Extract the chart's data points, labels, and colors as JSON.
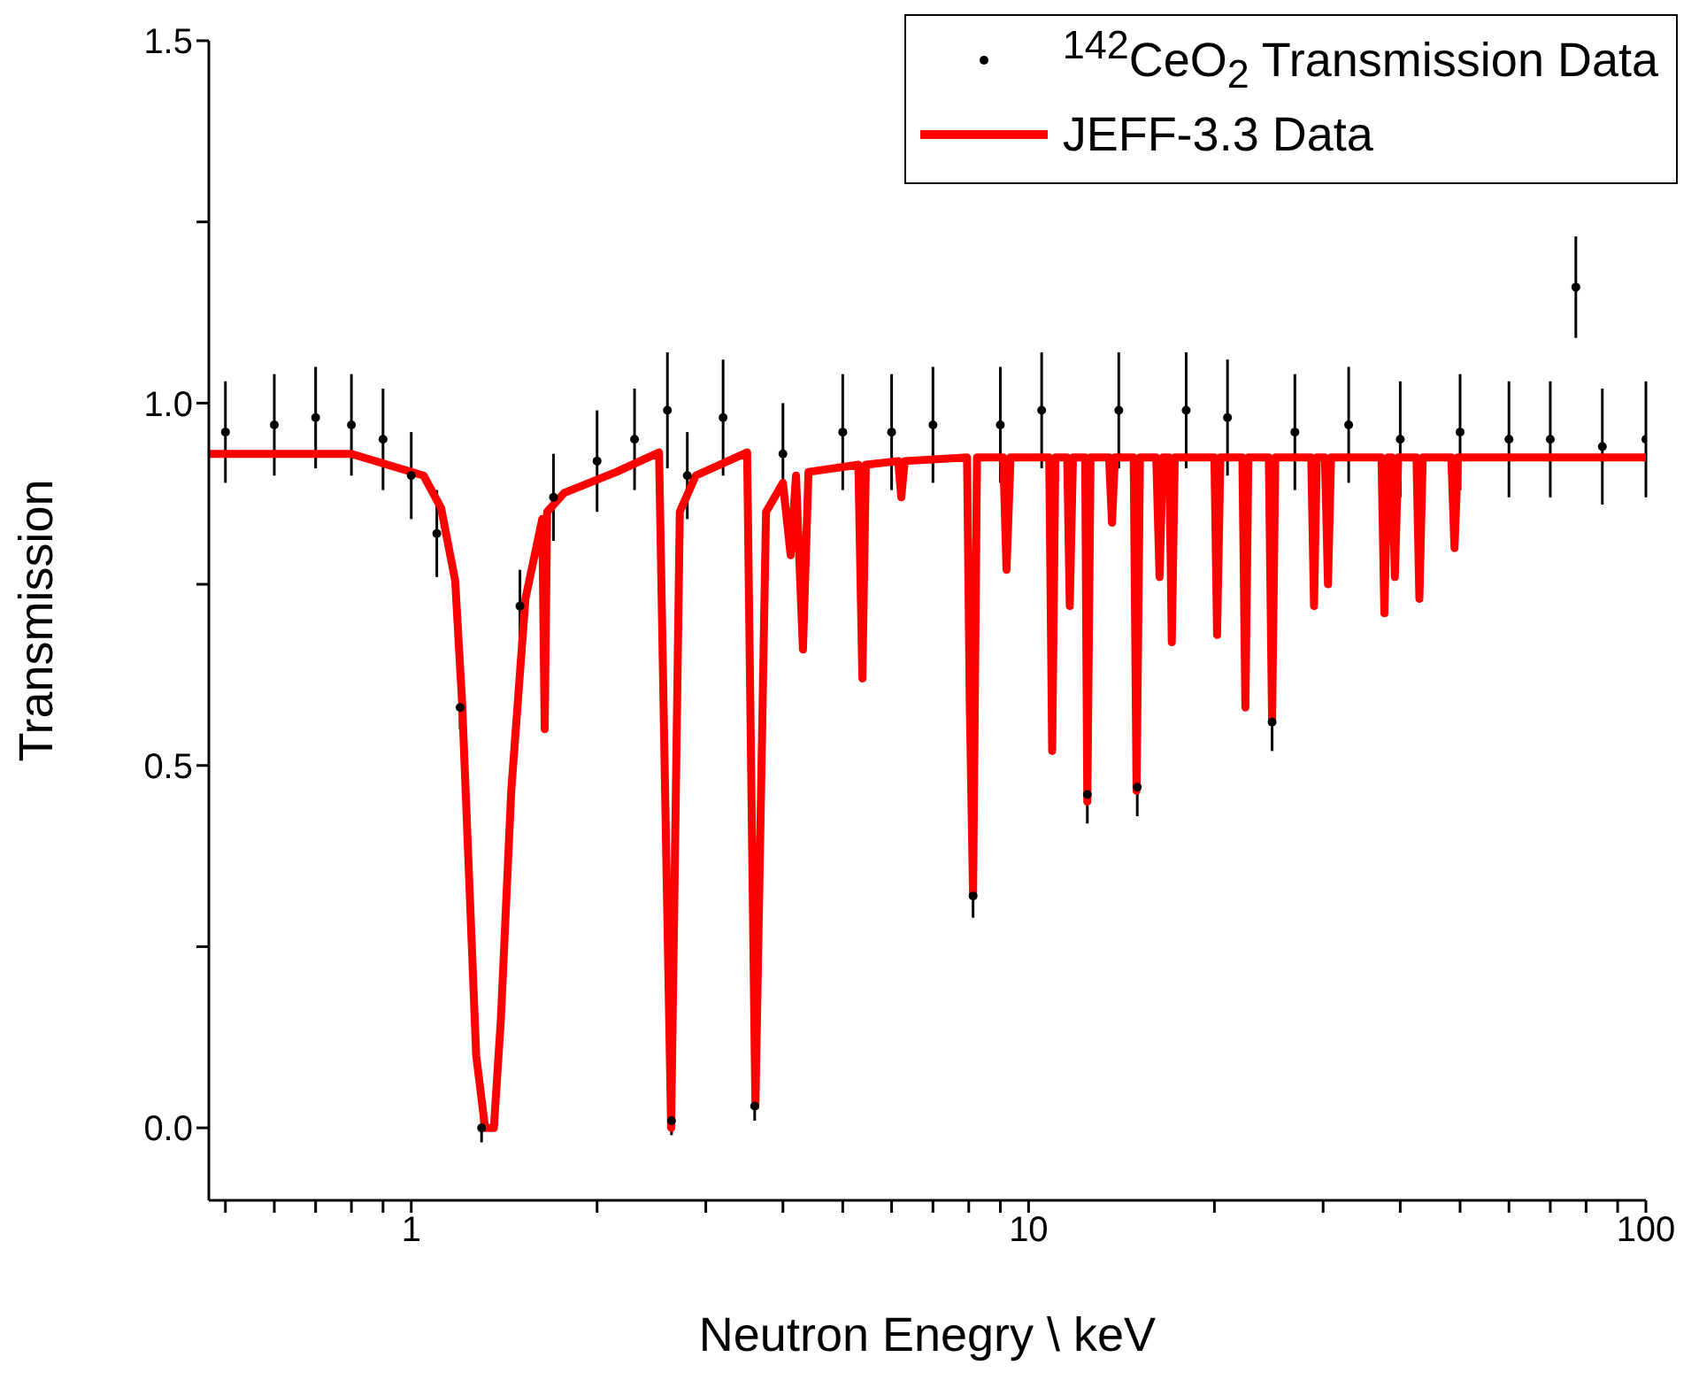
{
  "chart_data": {
    "type": "scatter",
    "xlabel": "Neutron Enegry \\ keV",
    "ylabel": "Transmission",
    "log": "x",
    "grid": false,
    "legend": "top right",
    "line_style": "solid",
    "xlim": [
      0.47,
      100
    ],
    "xticks": [
      {
        "value": 0.5,
        "label": null
      },
      {
        "value": 0.6,
        "label": null
      },
      {
        "value": 0.7,
        "label": null
      },
      {
        "value": 0.8,
        "label": null
      },
      {
        "value": 0.9,
        "label": null
      },
      1,
      {
        "value": 2,
        "label": null
      },
      {
        "value": 3,
        "label": null
      },
      {
        "value": 4,
        "label": null
      },
      {
        "value": 5,
        "label": null
      },
      {
        "value": 6,
        "label": null
      },
      {
        "value": 7,
        "label": null
      },
      {
        "value": 8,
        "label": null
      },
      {
        "value": 9,
        "label": null
      },
      10,
      {
        "value": 20,
        "label": null
      },
      {
        "value": 30,
        "label": null
      },
      {
        "value": 40,
        "label": null
      },
      {
        "value": 50,
        "label": null
      },
      {
        "value": 60,
        "label": null
      },
      {
        "value": 70,
        "label": null
      },
      {
        "value": 80,
        "label": null
      },
      {
        "value": 90,
        "label": null
      },
      100
    ],
    "ylim": [
      -0.1,
      1.5
    ],
    "yticks": [
      {
        "value": 0,
        "label": "0.0"
      },
      {
        "value": 0.25,
        "label": null
      },
      {
        "value": 0.5,
        "label": "0.5"
      },
      {
        "value": 0.75,
        "label": null
      },
      {
        "value": 1,
        "label": "1.0"
      },
      {
        "value": 1.25,
        "label": null
      },
      {
        "value": 1.5,
        "label": "1.5"
      }
    ],
    "series": [
      {
        "name": "$^{142}$CeO$_{2}$ Transmission Data",
        "color": "#000000",
        "marker": "circle",
        "x": [
          0.5,
          0.6,
          0.7,
          0.8,
          0.9,
          1.0,
          1.1,
          1.2,
          1.3,
          1.5,
          1.7,
          2.0,
          2.3,
          2.6,
          2.64,
          2.8,
          3.2,
          3.6,
          4.0,
          5.0,
          6.0,
          7.0,
          8.13,
          9.0,
          10.5,
          12.45,
          14,
          15.0,
          18,
          21,
          24.8,
          27,
          33,
          40,
          50,
          60,
          70,
          77,
          85,
          100
        ],
        "values": [
          0.96,
          0.97,
          0.98,
          0.97,
          0.95,
          0.9,
          0.82,
          0.58,
          0.0,
          0.72,
          0.87,
          0.92,
          0.95,
          0.99,
          0.01,
          0.9,
          0.98,
          0.03,
          0.93,
          0.96,
          0.96,
          0.97,
          0.32,
          0.97,
          0.99,
          0.46,
          0.99,
          0.47,
          0.99,
          0.98,
          0.56,
          0.96,
          0.97,
          0.95,
          0.96,
          0.95,
          0.95,
          1.16,
          0.94,
          0.95
        ],
        "errors": [
          0.07,
          0.07,
          0.07,
          0.07,
          0.07,
          0.06,
          0.06,
          0.03,
          0.02,
          0.05,
          0.06,
          0.07,
          0.07,
          0.08,
          0.02,
          0.06,
          0.08,
          0.02,
          0.07,
          0.08,
          0.08,
          0.08,
          0.03,
          0.08,
          0.08,
          0.04,
          0.08,
          0.04,
          0.08,
          0.08,
          0.04,
          0.08,
          0.08,
          0.08,
          0.08,
          0.08,
          0.08,
          0.07,
          0.08,
          0.08
        ]
      },
      {
        "name": "JEFF-3.3 Data",
        "type": "line",
        "color": "#ff0000",
        "marker": "none",
        "x": [
          0.47,
          0.8,
          1.047,
          1.118,
          1.178,
          1.209,
          1.241,
          1.274,
          1.317,
          1.361,
          1.397,
          1.452,
          1.531,
          1.63,
          1.645,
          1.66,
          1.768,
          2.15,
          2.52,
          2.636,
          2.723,
          2.89,
          3.5,
          3.61,
          3.756,
          4.0,
          4.117,
          4.2,
          4.31,
          4.4,
          5.3,
          5.38,
          5.45,
          6.15,
          6.22,
          6.3,
          7.95,
          8.03,
          8.13,
          8.25,
          9.1,
          9.21,
          9.35,
          10.8,
          10.92,
          11.05,
          11.55,
          11.66,
          11.8,
          12.35,
          12.45,
          12.6,
          13.5,
          13.65,
          13.8,
          14.8,
          14.96,
          15.15,
          16.1,
          16.3,
          16.5,
          16.9,
          17.06,
          17.25,
          20.0,
          20.2,
          20.45,
          22.2,
          22.45,
          22.7,
          24.5,
          24.8,
          25.1,
          28.7,
          29.0,
          29.3,
          30.2,
          30.55,
          30.9,
          37.3,
          37.7,
          38.2,
          38.8,
          39.2,
          39.7,
          42.5,
          42.96,
          43.5,
          48.4,
          48.97,
          49.6,
          100
        ],
        "values": [
          0.93,
          0.93,
          0.9,
          0.855,
          0.755,
          0.586,
          0.344,
          0.1,
          0.0,
          0.0,
          0.15,
          0.465,
          0.73,
          0.84,
          0.55,
          0.85,
          0.876,
          0.905,
          0.932,
          0.0,
          0.85,
          0.9,
          0.932,
          0.03,
          0.85,
          0.89,
          0.79,
          0.9,
          0.66,
          0.905,
          0.915,
          0.62,
          0.915,
          0.92,
          0.87,
          0.92,
          0.925,
          0.586,
          0.32,
          0.925,
          0.925,
          0.77,
          0.925,
          0.925,
          0.52,
          0.925,
          0.925,
          0.72,
          0.925,
          0.925,
          0.45,
          0.925,
          0.925,
          0.835,
          0.925,
          0.925,
          0.465,
          0.925,
          0.925,
          0.76,
          0.925,
          0.925,
          0.67,
          0.925,
          0.925,
          0.68,
          0.925,
          0.925,
          0.58,
          0.925,
          0.925,
          0.56,
          0.925,
          0.925,
          0.72,
          0.925,
          0.925,
          0.75,
          0.925,
          0.925,
          0.71,
          0.925,
          0.925,
          0.76,
          0.925,
          0.925,
          0.73,
          0.925,
          0.925,
          0.8,
          0.925,
          0.925
        ]
      }
    ]
  }
}
